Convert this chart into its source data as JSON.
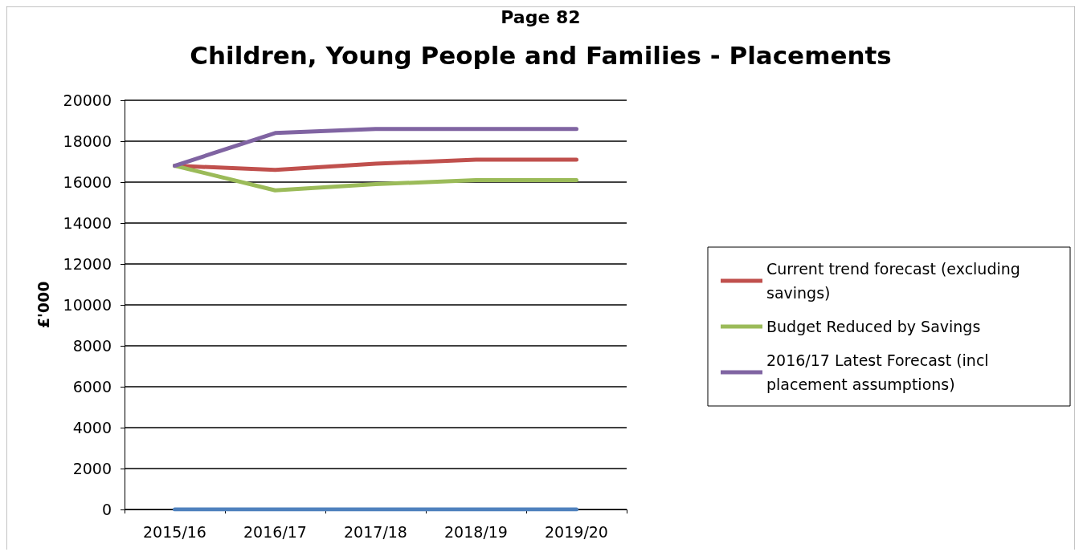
{
  "chart_data": {
    "type": "line",
    "title": "Children, Young People and Families - Placements",
    "ylabel": "£'000",
    "annotations": [
      "Page 82"
    ],
    "categories": [
      "2015/16",
      "2016/17",
      "2017/18",
      "2018/19",
      "2019/20"
    ],
    "series": [
      {
        "name": "Current trend forecast (excluding savings)",
        "color": "#c0504d",
        "values": [
          16800,
          16600,
          16900,
          17100,
          17100
        ]
      },
      {
        "name": "Budget Reduced by Savings",
        "color": "#9bbb59",
        "values": [
          16800,
          15600,
          15900,
          16100,
          16100
        ]
      },
      {
        "name": "2016/17 Latest Forecast (incl placement assumptions)",
        "color": "#8064a2",
        "values": [
          16800,
          18400,
          18600,
          18600,
          18600
        ]
      },
      {
        "color": "#4f81bd",
        "values": [
          0,
          0,
          0,
          0,
          0
        ]
      }
    ],
    "ylim": [
      0,
      20000
    ],
    "yticks": [
      0,
      2000,
      4000,
      6000,
      8000,
      10000,
      12000,
      14000,
      16000,
      18000,
      20000
    ],
    "grid": "y",
    "legend": "right",
    "marker": "none",
    "line_style": "solid"
  }
}
